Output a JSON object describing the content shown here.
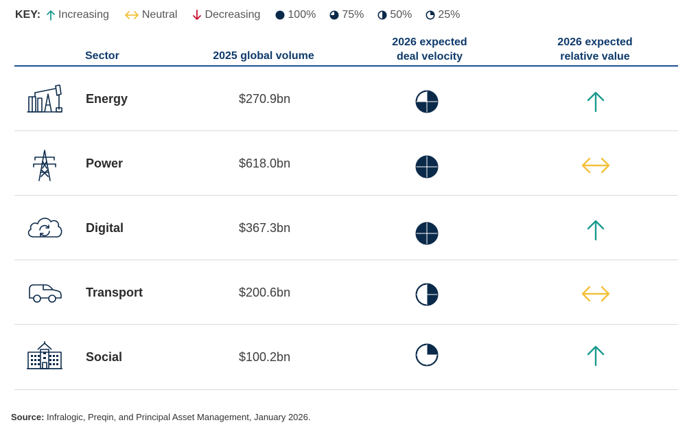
{
  "key": {
    "title": "KEY:",
    "items": [
      {
        "label": "Increasing",
        "icon": "arrow-up-icon"
      },
      {
        "label": "Neutral",
        "icon": "arrow-left-right-icon"
      },
      {
        "label": "Decreasing",
        "icon": "arrow-down-icon"
      },
      {
        "label": "100%",
        "icon": "pie-100-icon"
      },
      {
        "label": "75%",
        "icon": "pie-75-icon"
      },
      {
        "label": "50%",
        "icon": "pie-50-icon"
      },
      {
        "label": "25%",
        "icon": "pie-25-icon"
      }
    ]
  },
  "headers": {
    "sector": "Sector",
    "volume": "2025 global volume",
    "velocity_line1": "2026 expected",
    "velocity_line2": "deal velocity",
    "value_line1": "2026 expected",
    "value_line2": "relative value"
  },
  "rows": [
    {
      "sector": "Energy",
      "icon": "oil-pump-icon",
      "volume": "$270.9bn",
      "velocity": 0.75,
      "relative_value": "Increasing"
    },
    {
      "sector": "Power",
      "icon": "power-pylon-icon",
      "volume": "$618.0bn",
      "velocity": 1.0,
      "relative_value": "Neutral"
    },
    {
      "sector": "Digital",
      "icon": "cloud-sync-icon",
      "volume": "$367.3bn",
      "velocity": 1.0,
      "relative_value": "Increasing"
    },
    {
      "sector": "Transport",
      "icon": "car-icon",
      "volume": "$200.6bn",
      "velocity": 0.5,
      "relative_value": "Neutral"
    },
    {
      "sector": "Social",
      "icon": "building-icon",
      "volume": "$100.2bn",
      "velocity": 0.25,
      "relative_value": "Increasing"
    }
  ],
  "source": {
    "label": "Source:",
    "text": "Infralogic, Preqin, and Principal Asset Management, January 2026."
  },
  "colors": {
    "navy": "#0b2a4a",
    "header_blue": "#0e3a6b",
    "increasing": "#1a9b8f",
    "neutral": "#f2c13a",
    "decreasing": "#c8102e",
    "rule": "#1d4f91"
  }
}
